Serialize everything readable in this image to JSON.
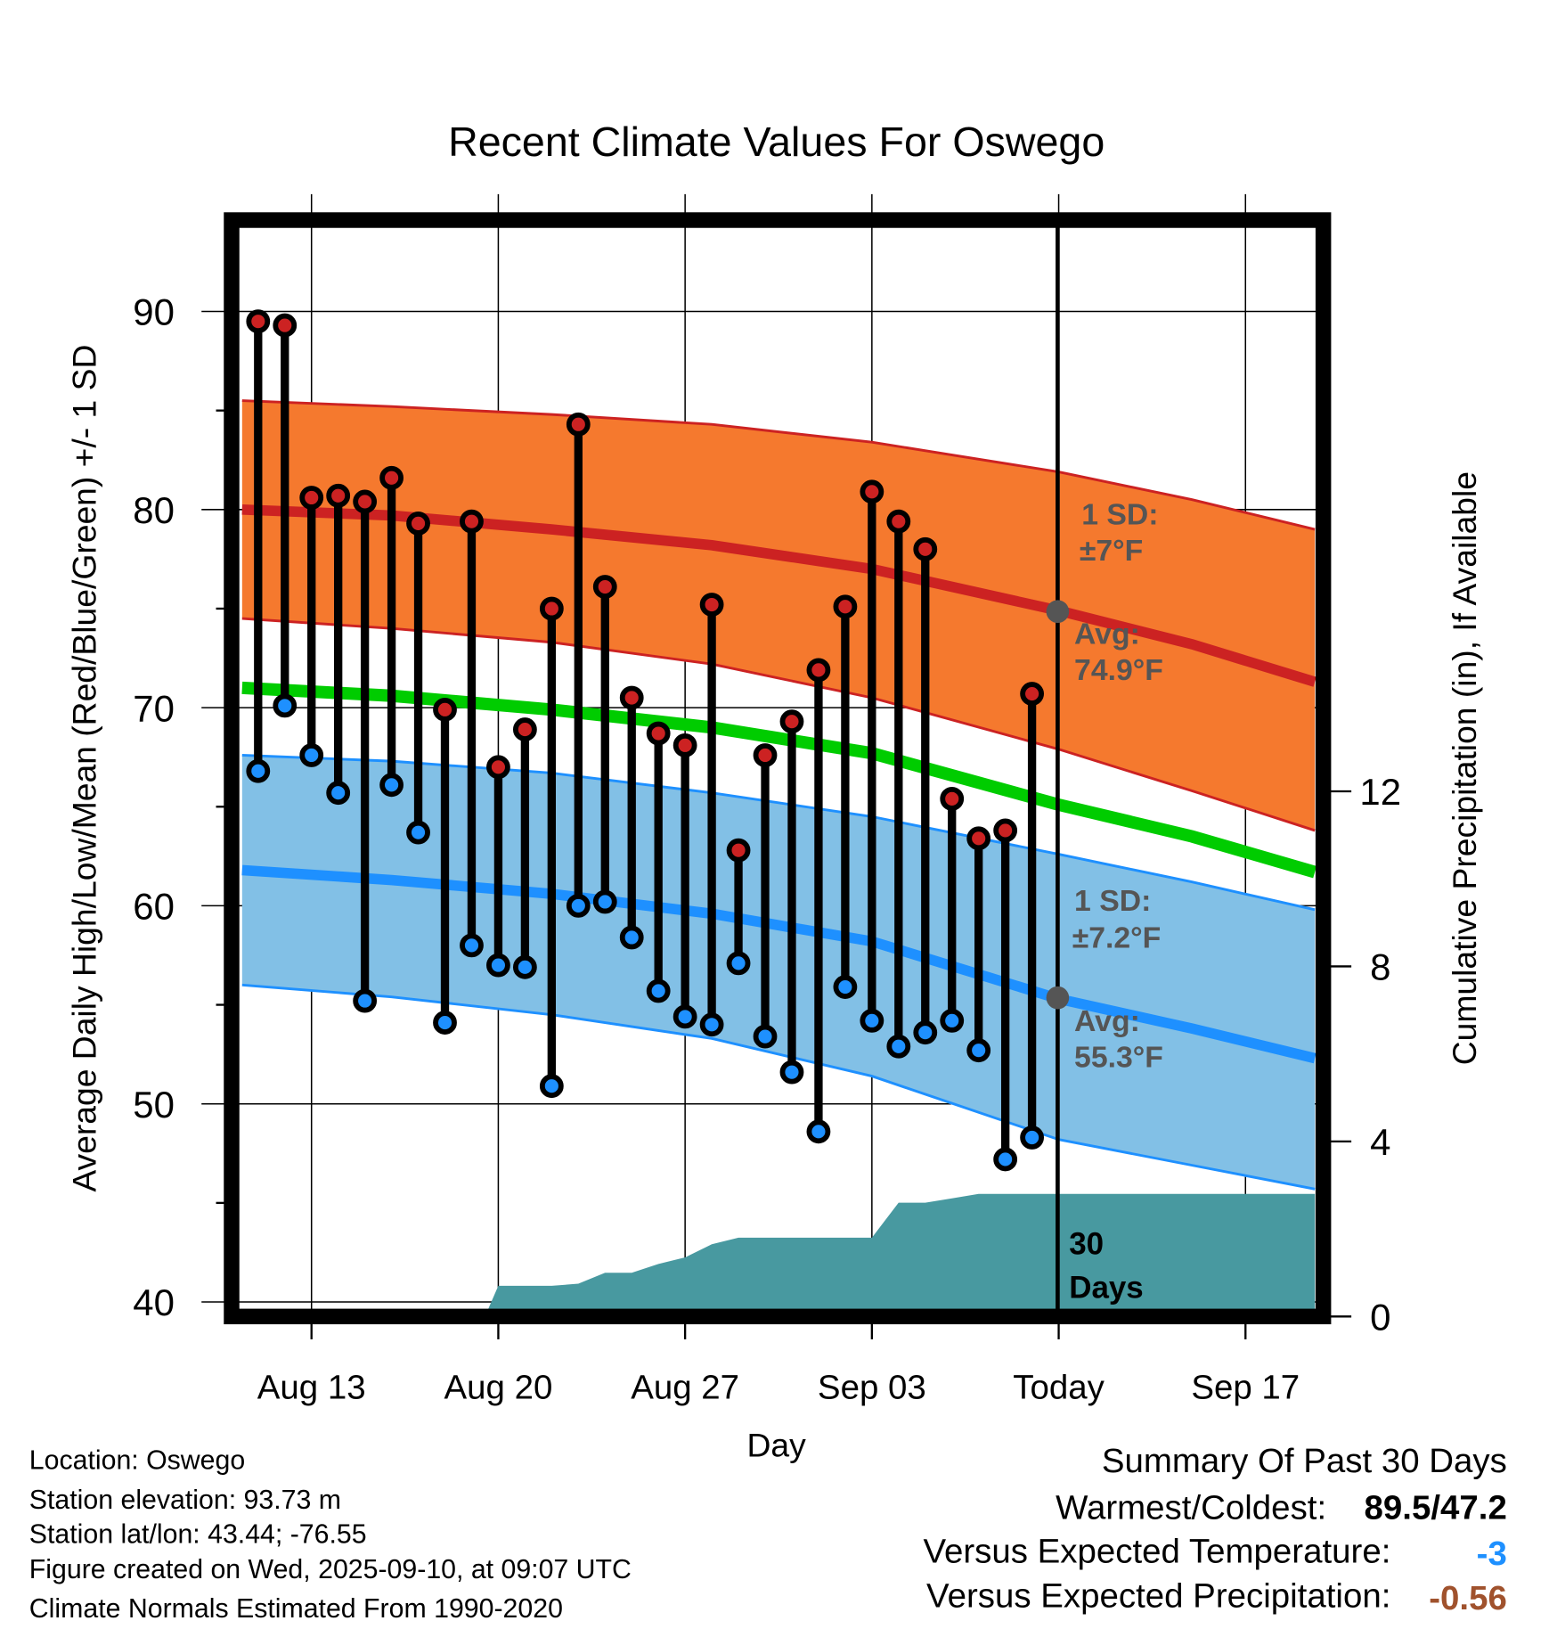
{
  "chart_data": {
    "type": "line",
    "title": "Recent Climate Values For Oswego",
    "xlabel": "Day",
    "ylabel": "Average Daily High/Low/Mean (Red/Blue/Green) +/- 1 SD",
    "y2label": "Cumulative Precipitation (in), If Available",
    "ylim": [
      39.6,
      94.6
    ],
    "y2lim": [
      0,
      23.5
    ],
    "yticks": [
      "40",
      "50",
      "60",
      "70",
      "80",
      "90"
    ],
    "y2ticks": [
      "0",
      "4",
      "8",
      "12"
    ],
    "xticks": [
      "Aug 13",
      "Aug 20",
      "Aug 27",
      "Sep 03",
      "Today",
      "Sep 17"
    ],
    "xtick_days": [
      13,
      20,
      27,
      34,
      41,
      48
    ],
    "xlim_days": [
      10,
      51
    ],
    "day_axis_note": "days counted from Aug 1 = 1; Sep n = 31+n",
    "days": [
      11,
      12,
      13,
      14,
      15,
      16,
      17,
      18,
      19,
      20,
      21,
      22,
      23,
      24,
      25,
      26,
      27,
      28,
      29,
      30,
      31,
      32,
      33,
      34,
      35,
      36,
      37,
      38,
      39,
      40
    ],
    "highs": [
      89.5,
      89.3,
      80.6,
      80.7,
      80.4,
      81.6,
      79.3,
      69.9,
      79.4,
      67.0,
      68.9,
      75.0,
      84.3,
      76.1,
      70.5,
      68.7,
      68.1,
      75.2,
      62.8,
      67.6,
      69.3,
      71.9,
      75.1,
      80.9,
      79.4,
      78.0,
      65.4,
      63.4,
      63.8,
      70.7
    ],
    "lows": [
      66.8,
      70.1,
      67.6,
      65.7,
      55.2,
      66.1,
      63.7,
      54.1,
      58.0,
      57.0,
      56.9,
      50.9,
      60.0,
      60.2,
      58.4,
      55.7,
      54.4,
      54.0,
      57.1,
      53.4,
      51.6,
      48.6,
      55.9,
      54.2,
      52.9,
      53.6,
      54.2,
      52.7,
      47.2,
      48.3
    ],
    "normals_days": [
      10,
      16,
      22,
      28,
      34,
      41,
      46,
      51
    ],
    "normal_high": [
      80.0,
      79.7,
      79.0,
      78.2,
      77.0,
      74.9,
      73.2,
      71.3
    ],
    "normal_high_upper": [
      85.5,
      85.2,
      84.8,
      84.3,
      83.4,
      81.9,
      80.5,
      79.0
    ],
    "normal_high_lower": [
      74.5,
      74.0,
      73.3,
      72.2,
      70.5,
      67.9,
      65.8,
      63.8
    ],
    "normal_mean": [
      71.0,
      70.6,
      69.9,
      69.0,
      67.7,
      65.1,
      63.5,
      61.7
    ],
    "normal_low": [
      61.8,
      61.3,
      60.6,
      59.6,
      58.2,
      55.3,
      53.8,
      52.3
    ],
    "normal_low_upper": [
      67.6,
      67.3,
      66.7,
      65.7,
      64.5,
      62.6,
      61.2,
      59.8
    ],
    "normal_low_lower": [
      56.0,
      55.4,
      54.5,
      53.3,
      51.4,
      48.2,
      46.9,
      45.7
    ],
    "precip_days": [
      10,
      19.5,
      20,
      22,
      23,
      24,
      25,
      26,
      27,
      28,
      29,
      34,
      35,
      36,
      37,
      38,
      51
    ],
    "precip_cum": [
      0,
      0,
      0.7,
      0.7,
      0.75,
      1.0,
      1.0,
      1.2,
      1.35,
      1.65,
      1.8,
      1.8,
      2.6,
      2.6,
      2.7,
      2.8,
      2.8
    ],
    "colors": {
      "high": "#cc2222",
      "high_band": "#f5792e",
      "mean": "#00cc00",
      "low": "#1e90ff",
      "low_band": "#82c0e6",
      "precip": "#4899a0",
      "low_marker": "#1e90ff",
      "high_marker": "#cc2222"
    }
  },
  "annotations": {
    "high_sd_1": "1 SD:",
    "high_sd_2": "±7°F",
    "high_avg_1": "Avg:",
    "high_avg_2": "74.9°F",
    "low_sd_1": "1 SD:",
    "low_sd_2": "±7.2°F",
    "low_avg_1": "Avg:",
    "low_avg_2": "55.3°F",
    "days_1": "30",
    "days_2": "Days"
  },
  "footer": {
    "location": "Location: Oswego",
    "elevation": "Station elevation: 93.73 m",
    "latlon": "Station lat/lon: 43.44; -76.55",
    "created": "Figure created on Wed, 2025-09-10, at 09:07 UTC",
    "normals": "Climate Normals Estimated From 1990-2020"
  },
  "summary": {
    "title": "Summary Of Past 30 Days",
    "warm_label": "Warmest/Coldest:",
    "warm_value": "89.5/47.2",
    "temp_label": "Versus Expected Temperature:",
    "temp_value": "-3",
    "temp_color": "#1e90ff",
    "precip_label": "Versus Expected Precipitation:",
    "precip_value": "-0.56",
    "precip_color": "#a0522d"
  }
}
